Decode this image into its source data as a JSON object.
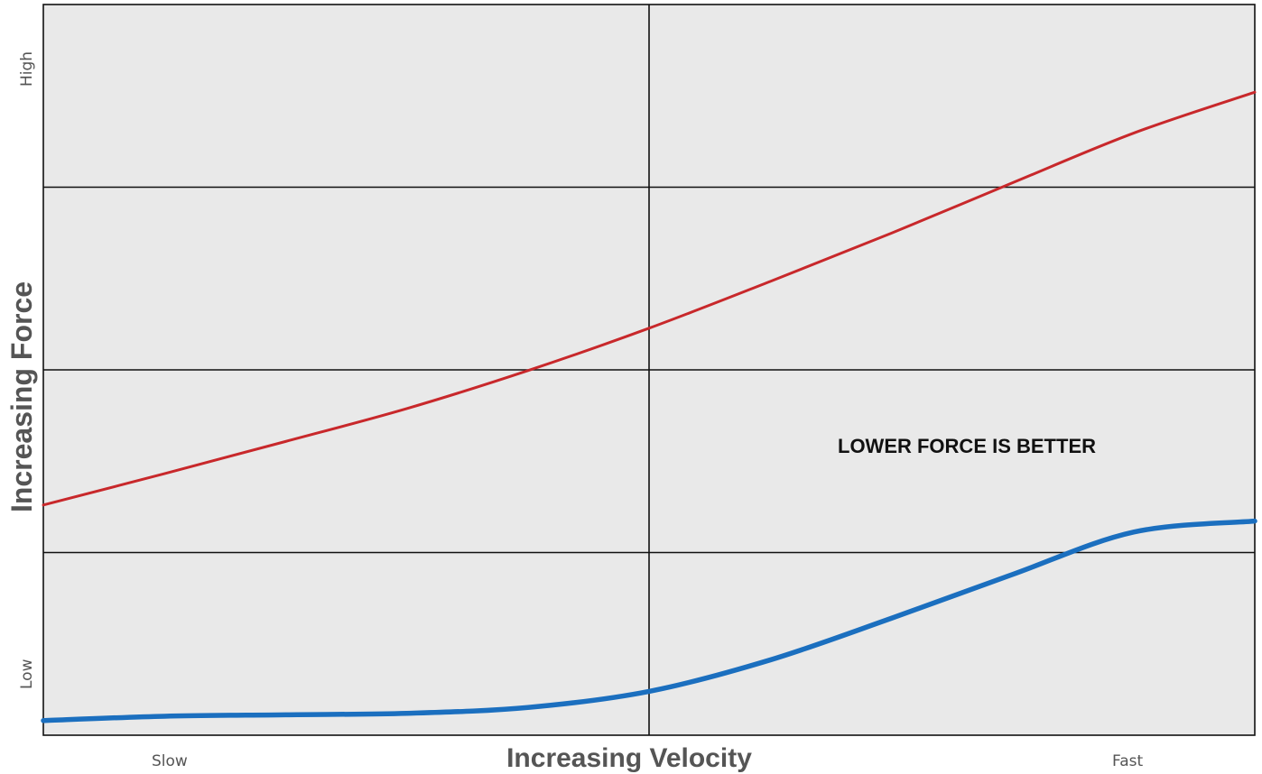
{
  "chart_data": {
    "type": "line",
    "title": "",
    "xlabel": "Increasing Velocity",
    "ylabel": "Increasing Force",
    "x_tick_labels": {
      "start": "Slow",
      "end": "Fast"
    },
    "y_tick_labels": {
      "top": "High",
      "bottom": "Low"
    },
    "xlim": [
      0,
      10
    ],
    "ylim": [
      0,
      10
    ],
    "grid": true,
    "grid_x_lines": [
      5
    ],
    "grid_y_lines": [
      2.5,
      5,
      7.5
    ],
    "annotation": "LOWER FORCE IS BETTER",
    "series": [
      {
        "color": "#c8282b",
        "x": [
          0,
          1,
          2,
          3,
          4,
          5,
          6,
          7,
          8,
          9,
          10
        ],
        "y": [
          3.15,
          3.58,
          4.02,
          4.47,
          4.99,
          5.57,
          6.21,
          6.87,
          7.56,
          8.24,
          8.8
        ]
      },
      {
        "color": "#1b6fbf",
        "x": [
          0,
          1,
          2,
          3,
          4,
          5,
          6,
          7,
          8,
          9,
          10
        ],
        "y": [
          0.2,
          0.26,
          0.28,
          0.3,
          0.38,
          0.6,
          1.03,
          1.6,
          2.2,
          2.78,
          2.93
        ]
      }
    ]
  }
}
